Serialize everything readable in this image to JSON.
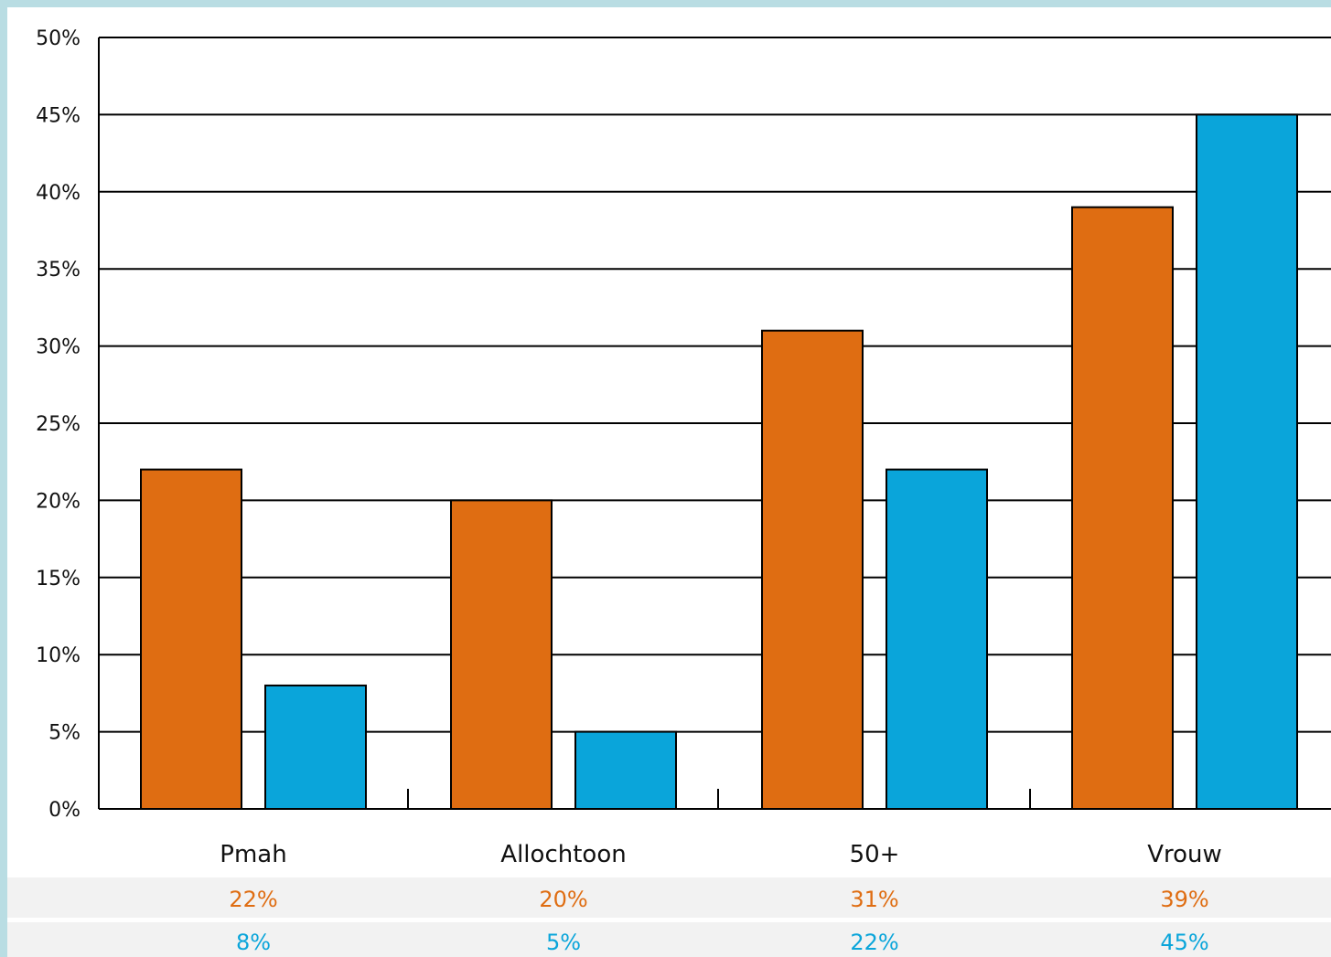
{
  "colors": {
    "series_0": "#df6d12",
    "series_1": "#0aa5da",
    "grid": "#000000",
    "row_band": "#f2f2f2",
    "border": "#b9dde3"
  },
  "chart_data": {
    "type": "bar",
    "categories": [
      "Pmah",
      "Allochtoon",
      "50+",
      "Vrouw"
    ],
    "series": [
      {
        "values": [
          22,
          20,
          31,
          39
        ],
        "labels": [
          "22%",
          "20%",
          "31%",
          "39%"
        ],
        "color": "#df6d12"
      },
      {
        "values": [
          8,
          5,
          22,
          45
        ],
        "labels": [
          "8%",
          "5%",
          "22%",
          "45%"
        ],
        "color": "#0aa5da"
      }
    ],
    "ylim": [
      0,
      50
    ],
    "yticks": [
      0,
      5,
      10,
      15,
      20,
      25,
      30,
      35,
      40,
      45,
      50
    ],
    "ytick_labels": [
      "0%",
      "5%",
      "10%",
      "15%",
      "20%",
      "25%",
      "30%",
      "35%",
      "40%",
      "45%",
      "50%"
    ],
    "grid": true,
    "legend": "none"
  }
}
